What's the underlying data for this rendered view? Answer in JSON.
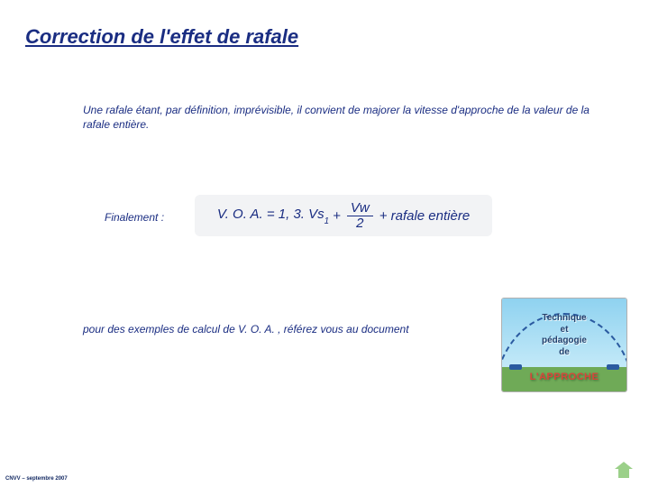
{
  "title": {
    "text": "Correction de l'effet de rafale",
    "color": "#1a2d82",
    "fontsize": 22
  },
  "intro": {
    "text": "Une rafale étant, par définition, imprévisible, il convient de majorer la vitesse d'approche de la valeur de la rafale entière.",
    "color": "#1a2d82",
    "fontsize": 12
  },
  "finalement": {
    "text": "Finalement :",
    "color": "#1a2d82",
    "fontsize": 12
  },
  "formula": {
    "lead": "V. O. A. = 1, 3. Vs",
    "sub": "1",
    "plus": "+",
    "frac_num": "Vw",
    "frac_den": "2",
    "tail": "+ rafale entière",
    "color": "#1a2d82",
    "fontsize": 15,
    "box_bg": "#f2f3f5"
  },
  "examples": {
    "text": "pour des exemples de calcul de V. O. A. , référez vous au document",
    "color": "#1a2d82",
    "fontsize": 12
  },
  "thumbnail": {
    "line1": "Technique",
    "line2": "et",
    "line3": "pédagogie",
    "line4": "de",
    "title": "L'APPROCHE",
    "title_color": "#d9443a",
    "text_color": "#22406d",
    "sky_colors": [
      "#8fd2f0",
      "#c3e9f8"
    ],
    "ground_color": "#6faa57",
    "arc_color": "#2a5aa0"
  },
  "footer": {
    "text": "CNVV – septembre 2007",
    "color": "#142a63",
    "fontsize": 6
  },
  "home_icon": {
    "color": "#9bd089"
  }
}
